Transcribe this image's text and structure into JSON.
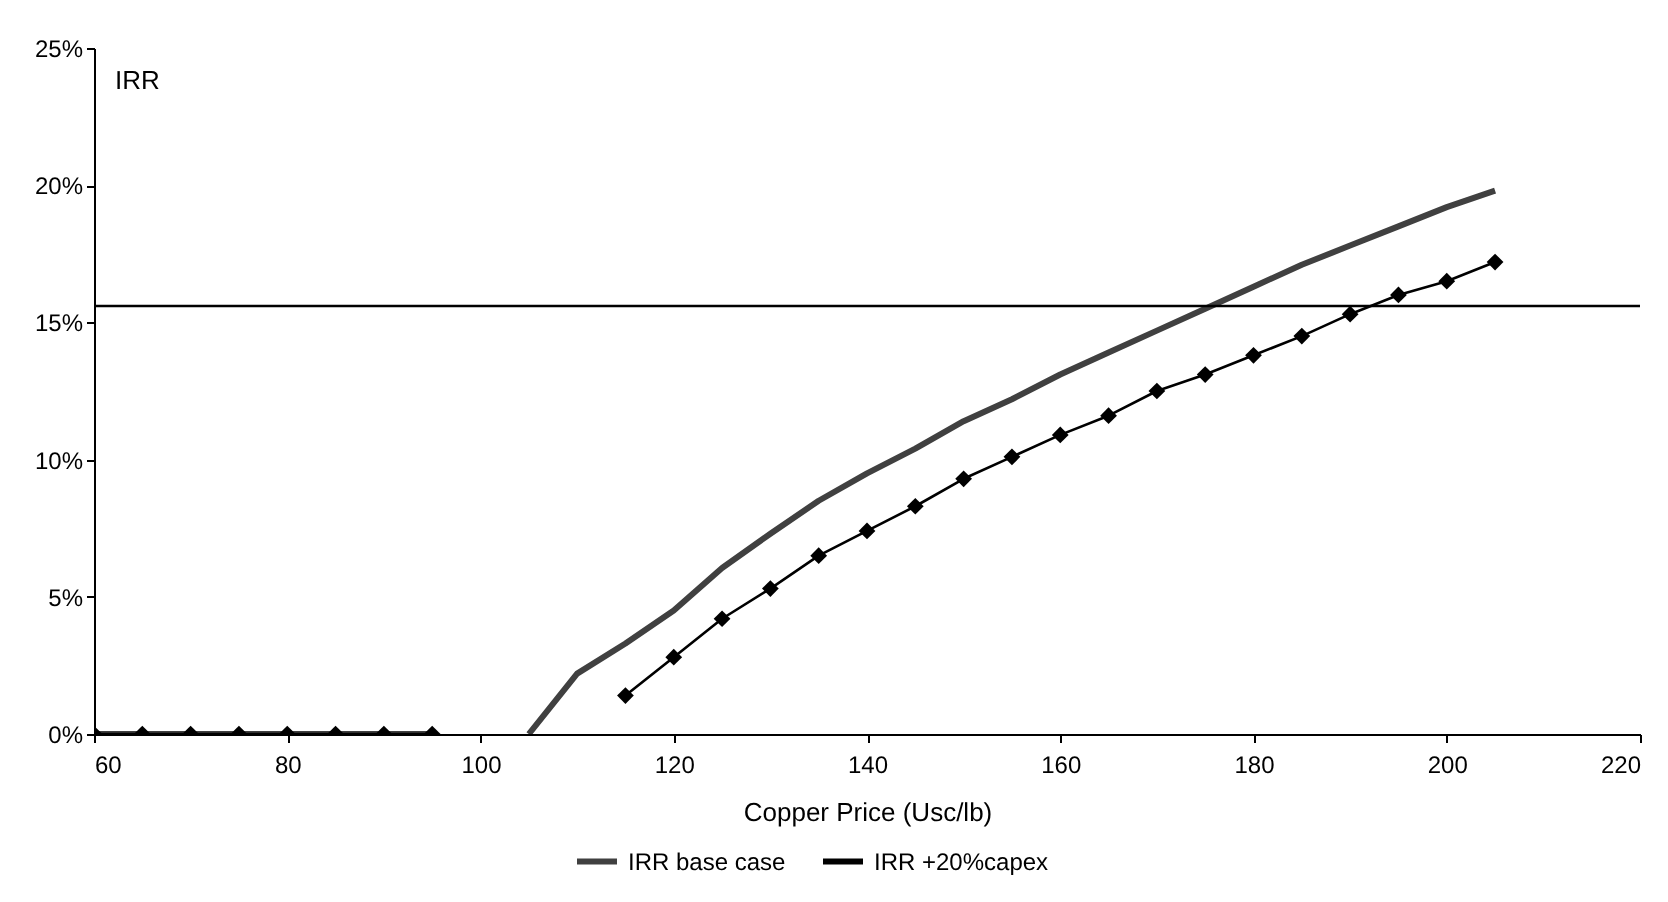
{
  "chart_data": {
    "type": "line",
    "xlabel": "Copper Price (Usc/lb)",
    "ylabel": "IRR",
    "x": [
      60,
      65,
      70,
      75,
      80,
      85,
      90,
      95,
      100,
      105,
      110,
      115,
      120,
      125,
      130,
      135,
      140,
      145,
      150,
      155,
      160,
      165,
      170,
      175,
      180,
      185,
      190,
      195,
      200,
      205
    ],
    "series": [
      {
        "name": "IRR base case",
        "color": "#404040",
        "marker": "none",
        "values": [
          0,
          0,
          0,
          0,
          0,
          0,
          0,
          0,
          null,
          0,
          2.2,
          3.3,
          4.5,
          6.05,
          7.3,
          8.5,
          9.5,
          10.4,
          11.4,
          12.2,
          13.1,
          13.9,
          14.7,
          15.5,
          16.3,
          17.1,
          17.8,
          18.5,
          19.2,
          19.8
        ]
      },
      {
        "name": "IRR +20%capex",
        "color": "#000000",
        "values": [
          0,
          0,
          0,
          0,
          0,
          0,
          0,
          0,
          null,
          null,
          null,
          1.4,
          2.8,
          4.2,
          5.3,
          6.5,
          7.4,
          8.3,
          9.3,
          10.1,
          10.9,
          11.6,
          12.5,
          13.1,
          13.8,
          14.5,
          15.3,
          16.0,
          16.5,
          17.2
        ]
      }
    ],
    "marker": "diamond",
    "xlim": [
      60,
      220
    ],
    "xticks": [
      60,
      80,
      100,
      120,
      140,
      160,
      180,
      200,
      220
    ],
    "ylim": [
      0,
      25
    ],
    "yticks": [
      {
        "value": 0,
        "label": "0%"
      },
      {
        "value": 5,
        "label": "5%"
      },
      {
        "value": 10,
        "label": "10%"
      },
      {
        "value": 15,
        "label": "15%"
      },
      {
        "value": 20,
        "label": "20%"
      },
      {
        "value": 25,
        "label": "25%"
      }
    ],
    "ref_lines": [
      {
        "axis": "y",
        "value": 15.6,
        "color": "#000000"
      }
    ],
    "grid": false,
    "legend": "bottom"
  }
}
